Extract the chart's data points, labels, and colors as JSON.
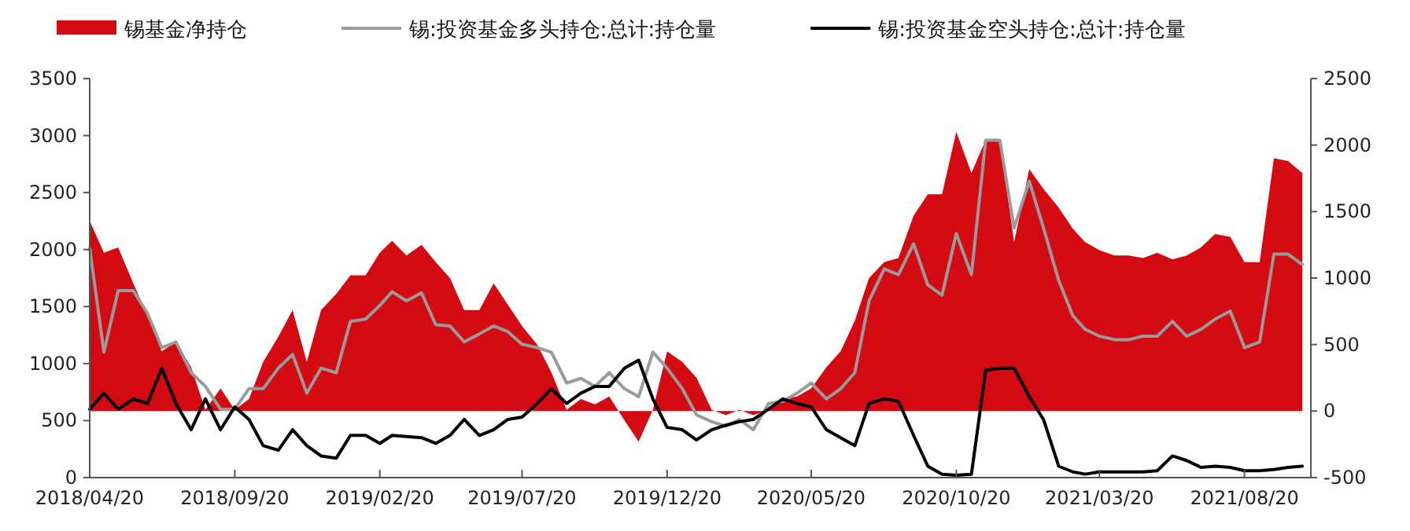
{
  "chart_data": {
    "type": "line",
    "legend": "top",
    "x": [
      "2018-04-20",
      "2018-05-05",
      "2018-05-20",
      "2018-06-05",
      "2018-06-20",
      "2018-07-05",
      "2018-07-20",
      "2018-08-05",
      "2018-08-20",
      "2018-09-05",
      "2018-09-20",
      "2018-10-05",
      "2018-10-20",
      "2018-11-05",
      "2018-11-20",
      "2018-12-05",
      "2018-12-20",
      "2019-01-05",
      "2019-01-20",
      "2019-02-05",
      "2019-02-20",
      "2019-03-05",
      "2019-03-20",
      "2019-04-05",
      "2019-04-20",
      "2019-05-05",
      "2019-05-20",
      "2019-06-05",
      "2019-06-20",
      "2019-07-05",
      "2019-07-20",
      "2019-08-05",
      "2019-08-20",
      "2019-09-05",
      "2019-09-20",
      "2019-10-05",
      "2019-10-20",
      "2019-11-05",
      "2019-11-20",
      "2019-12-05",
      "2019-12-20",
      "2020-01-05",
      "2020-01-20",
      "2020-02-05",
      "2020-02-20",
      "2020-03-05",
      "2020-03-20",
      "2020-04-05",
      "2020-04-20",
      "2020-05-05",
      "2020-05-20",
      "2020-06-05",
      "2020-06-20",
      "2020-07-05",
      "2020-07-20",
      "2020-08-05",
      "2020-08-20",
      "2020-09-05",
      "2020-09-20",
      "2020-10-05",
      "2020-10-20",
      "2020-11-05",
      "2020-11-20",
      "2020-12-05",
      "2020-12-20",
      "2021-01-05",
      "2021-01-20",
      "2021-02-05",
      "2021-02-20",
      "2021-03-05",
      "2021-03-20",
      "2021-04-05",
      "2021-04-20",
      "2021-05-05",
      "2021-05-20",
      "2021-06-05",
      "2021-06-20",
      "2021-07-05",
      "2021-07-20",
      "2021-08-05",
      "2021-08-20",
      "2021-09-05",
      "2021-09-20",
      "2021-10-05",
      "2021-10-20"
    ],
    "series": [
      {
        "name": "锡基金净持仓",
        "type": "area",
        "axis": "y2",
        "color": "#d40a12",
        "values": [
          1430,
          1190,
          1230,
          960,
          720,
          450,
          520,
          330,
          10,
          170,
          10,
          90,
          370,
          560,
          760,
          370,
          760,
          880,
          1020,
          1020,
          1190,
          1280,
          1170,
          1250,
          1120,
          1000,
          760,
          760,
          960,
          800,
          640,
          500,
          290,
          10,
          90,
          50,
          110,
          -70,
          -230,
          10,
          450,
          370,
          250,
          10,
          -30,
          10,
          -30,
          10,
          90,
          110,
          170,
          330,
          450,
          680,
          1000,
          1120,
          1150,
          1470,
          1630,
          1630,
          2100,
          1790,
          2040,
          2040,
          1270,
          1820,
          1670,
          1530,
          1370,
          1270,
          1210,
          1170,
          1170,
          1150,
          1190,
          1140,
          1170,
          1230,
          1330,
          1310,
          1120,
          1120,
          1900,
          1880,
          1790
        ]
      },
      {
        "name": "锡:投资基金多头持仓:总计:持仓量",
        "axis": "y",
        "color": "#9a9a9a",
        "values": [
          2010,
          1100,
          1640,
          1640,
          1440,
          1140,
          1190,
          920,
          800,
          600,
          600,
          780,
          780,
          960,
          1080,
          740,
          960,
          920,
          1370,
          1390,
          1510,
          1630,
          1550,
          1620,
          1340,
          1330,
          1190,
          1260,
          1330,
          1280,
          1170,
          1140,
          1100,
          830,
          870,
          800,
          920,
          780,
          710,
          1100,
          960,
          780,
          550,
          490,
          450,
          510,
          420,
          650,
          670,
          740,
          830,
          690,
          780,
          920,
          1550,
          1830,
          1780,
          2050,
          1690,
          1600,
          2140,
          1780,
          2960,
          2960,
          2190,
          2600,
          2190,
          1730,
          1420,
          1300,
          1240,
          1210,
          1210,
          1240,
          1240,
          1370,
          1240,
          1300,
          1390,
          1460,
          1140,
          1190,
          1960,
          1960,
          1870
        ]
      },
      {
        "name": "锡:投资基金空头持仓:总计:持仓量",
        "axis": "y",
        "color": "#000000",
        "values": [
          600,
          740,
          600,
          690,
          650,
          960,
          650,
          420,
          690,
          420,
          620,
          510,
          280,
          240,
          420,
          280,
          190,
          170,
          370,
          370,
          300,
          370,
          360,
          350,
          300,
          370,
          510,
          370,
          420,
          510,
          530,
          650,
          780,
          650,
          740,
          800,
          800,
          960,
          1030,
          690,
          440,
          420,
          330,
          420,
          460,
          490,
          510,
          600,
          690,
          650,
          620,
          420,
          350,
          280,
          650,
          690,
          670,
          370,
          100,
          30,
          20,
          30,
          940,
          960,
          960,
          710,
          510,
          100,
          50,
          30,
          50,
          50,
          50,
          50,
          60,
          190,
          150,
          90,
          100,
          90,
          60,
          60,
          70,
          90,
          100
        ]
      }
    ],
    "xlim": [
      "2018-04-20",
      "2021-10-29"
    ],
    "xticks": [
      {
        "value": "2018-04-20",
        "label": "2018/04/20"
      },
      {
        "value": "2018-09-20",
        "label": "2018/09/20"
      },
      {
        "value": "2019-02-20",
        "label": "2019/02/20"
      },
      {
        "value": "2019-07-20",
        "label": "2019/07/20"
      },
      {
        "value": "2019-12-20",
        "label": "2019/12/20"
      },
      {
        "value": "2020-05-20",
        "label": "2020/05/20"
      },
      {
        "value": "2020-10-20",
        "label": "2020/10/20"
      },
      {
        "value": "2021-03-20",
        "label": "2021/03/20"
      },
      {
        "value": "2021-08-20",
        "label": "2021/08/20"
      }
    ],
    "ylim": [
      0,
      3500
    ],
    "yticks": [
      0,
      500,
      1000,
      1500,
      2000,
      2500,
      3000,
      3500
    ],
    "y2lim": [
      -500,
      2500
    ],
    "y2ticks": [
      -500,
      0,
      500,
      1000,
      1500,
      2000,
      2500
    ]
  }
}
